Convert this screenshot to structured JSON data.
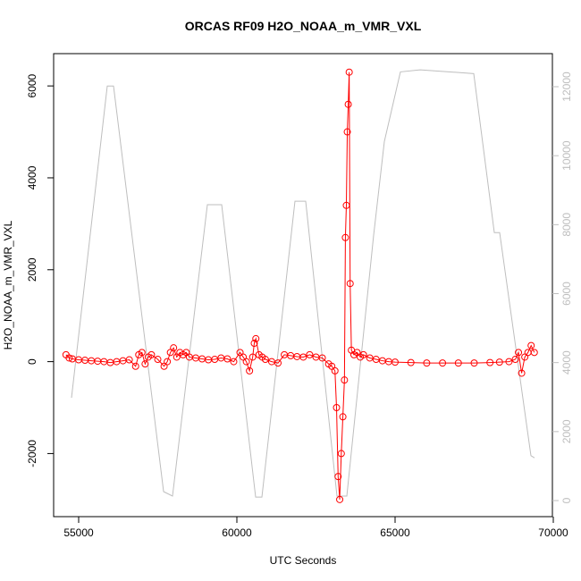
{
  "chart_data": {
    "type": "line",
    "title": "ORCAS RF09 H2O_NOAA_m_VMR_VXL",
    "x_label": "UTC Seconds",
    "y_label": "H2O_NOAA_m_VMR_VXL",
    "xlim": [
      54209,
      69972
    ],
    "ylim": [
      -3373,
      6703
    ],
    "y2lim": [
      -466,
      12959
    ],
    "xticks": [
      55000,
      60000,
      65000,
      70000
    ],
    "yticks": [
      -2000,
      0,
      2000,
      4000,
      6000
    ],
    "y2ticks": [
      0,
      2000,
      4000,
      6000,
      8000,
      10000,
      12000
    ],
    "series": [
      {
        "color": "#ff0000",
        "markers": true,
        "x": [
          54600,
          54700,
          54800,
          55000,
          55200,
          55400,
          55600,
          55800,
          56000,
          56200,
          56400,
          56600,
          56800,
          56900,
          57000,
          57100,
          57200,
          57300,
          57500,
          57700,
          57800,
          57900,
          58000,
          58100,
          58200,
          58300,
          58400,
          58500,
          58700,
          58900,
          59100,
          59300,
          59500,
          59700,
          59900,
          60100,
          60200,
          60300,
          60400,
          60500,
          60550,
          60600,
          60700,
          60800,
          60900,
          61100,
          61300,
          61500,
          61700,
          61900,
          62100,
          62300,
          62500,
          62700,
          62900,
          63000,
          63100,
          63150,
          63200,
          63250,
          63300,
          63350,
          63400,
          63430,
          63460,
          63490,
          63520,
          63550,
          63580,
          63620,
          63700,
          63800,
          63900,
          64000,
          64200,
          64400,
          64600,
          64800,
          65000,
          65500,
          66000,
          66500,
          67000,
          67500,
          68000,
          68300,
          68600,
          68800,
          68900,
          69000,
          69100,
          69200,
          69300,
          69400
        ],
        "values": [
          150,
          80,
          60,
          40,
          30,
          20,
          10,
          0,
          -20,
          0,
          20,
          40,
          -100,
          150,
          200,
          -50,
          100,
          150,
          50,
          -100,
          0,
          200,
          300,
          100,
          200,
          150,
          200,
          100,
          80,
          60,
          40,
          50,
          80,
          60,
          0,
          200,
          100,
          0,
          -200,
          100,
          400,
          500,
          150,
          100,
          50,
          0,
          -30,
          150,
          130,
          110,
          100,
          150,
          100,
          80,
          -50,
          -100,
          -200,
          -1000,
          -2500,
          -3000,
          -2000,
          -1200,
          -400,
          2700,
          3400,
          5000,
          5600,
          6300,
          1700,
          250,
          150,
          200,
          100,
          150,
          80,
          50,
          20,
          0,
          -10,
          -20,
          -30,
          -30,
          -30,
          -30,
          -20,
          -10,
          0,
          50,
          200,
          -250,
          100,
          200,
          350,
          200
        ]
      },
      {
        "color": "#bebebe",
        "axis": "y2",
        "markers": false,
        "x": [
          54774,
          55904,
          56102,
          57684,
          57966,
          59068,
          59520,
          60593,
          60791,
          61836,
          62175,
          63164,
          63475,
          64322,
          64661,
          65169,
          65791,
          67486,
          68136,
          68305,
          69294,
          69407
        ],
        "values": [
          2980,
          12020,
          12020,
          260,
          130,
          8580,
          8580,
          100,
          100,
          8680,
          8680,
          130,
          130,
          7690,
          10410,
          12430,
          12490,
          12380,
          7770,
          7770,
          1300,
          1240
        ]
      }
    ]
  }
}
